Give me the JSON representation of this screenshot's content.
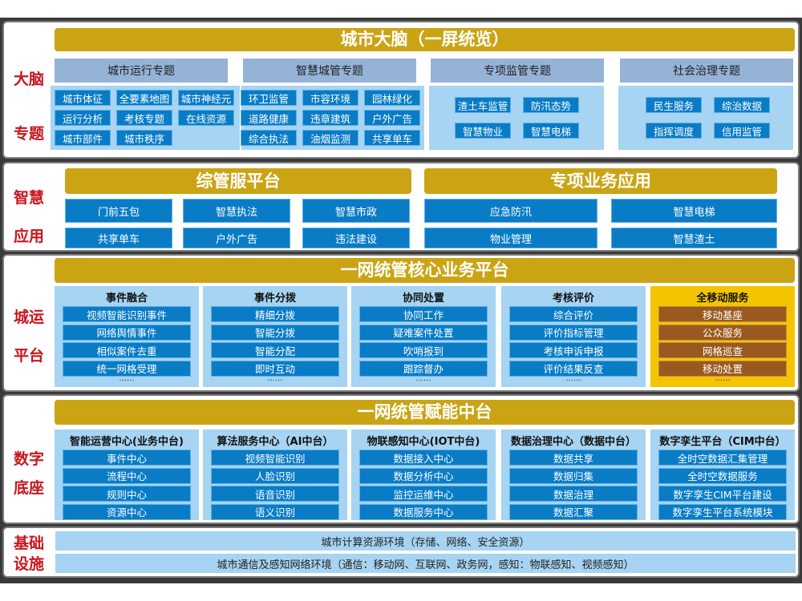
{
  "colors": {
    "gold": "#cba414",
    "header": "#95b3d7",
    "light_blue": "#a6d4f2",
    "item_blue": "#0a7cc6",
    "label_red": "#c8161d",
    "mobile_yellow": "#f5c400",
    "mobile_brown": "#9a5a1f"
  },
  "brain": {
    "label": [
      "大脑",
      "专题"
    ],
    "title": "城市大脑（一屏统览）",
    "groups": [
      {
        "title": "城市运行专题",
        "items": [
          "城市体征",
          "全要素地图",
          "城市神经元",
          "运行分析",
          "考核专题",
          "在线资源",
          "城市部件",
          "城市秩序"
        ]
      },
      {
        "title": "智慧城管专题",
        "items": [
          "环卫监管",
          "市容环境",
          "园林绿化",
          "道路健康",
          "违章建筑",
          "户外广告",
          "综合执法",
          "油烟监测",
          "共享单车"
        ]
      },
      {
        "title": "专项监管专题",
        "items": [
          "渣土车监管",
          "防汛态势",
          "智慧物业",
          "智慧电梯"
        ]
      },
      {
        "title": "社会治理专题",
        "items": [
          "民生服务",
          "综治数据",
          "指挥调度",
          "信用监管"
        ]
      }
    ]
  },
  "apps": {
    "label": [
      "智慧",
      "应用"
    ],
    "left": {
      "title": "综管服平台",
      "items": [
        "门前五包",
        "智慧执法",
        "智慧市政",
        "共享单车",
        "户外广告",
        "违法建设"
      ]
    },
    "right": {
      "title": "专项业务应用",
      "items": [
        "应急防汛",
        "智慧电梯",
        "物业管理",
        "智慧渣土"
      ]
    }
  },
  "ops": {
    "label": [
      "城运",
      "平台"
    ],
    "title": "一网统管核心业务平台",
    "columns": [
      {
        "title": "事件融合",
        "items": [
          "视频智能识别事件",
          "网络舆情事件",
          "相似案件去重",
          "统一网格受理"
        ],
        "more": "······"
      },
      {
        "title": "事件分拨",
        "items": [
          "精细分拨",
          "智能分拨",
          "智能分配",
          "即时互动"
        ],
        "more": "······"
      },
      {
        "title": "协同处置",
        "items": [
          "协同工作",
          "疑难案件处置",
          "吹哨报到",
          "跟踪督办"
        ],
        "more": "······"
      },
      {
        "title": "考核评价",
        "items": [
          "综合评价",
          "评价指标管理",
          "考核申诉申报",
          "评价结果反查"
        ],
        "more": "······"
      },
      {
        "title": "全移动服务",
        "items": [
          "移动基座",
          "公众服务",
          "网格巡查",
          "移动处置"
        ],
        "more": "······"
      }
    ]
  },
  "base": {
    "label": [
      "数字",
      "底座"
    ],
    "title": "一网统管赋能中台",
    "columns": [
      {
        "title": "智能运营中心(业务中台)",
        "items": [
          "事件中心",
          "流程中心",
          "规则中心",
          "资源中心"
        ]
      },
      {
        "title": "算法服务中心（AI中台）",
        "items": [
          "视频智能识别",
          "人脸识别",
          "语音识别",
          "语义识别"
        ]
      },
      {
        "title": "物联感知中心(IOT中台)",
        "items": [
          "数据接入中心",
          "数据分析中心",
          "监控运维中心",
          "数据服务中心"
        ]
      },
      {
        "title": "数据治理中心（数据中台）",
        "items": [
          "数据共享",
          "数据归集",
          "数据治理",
          "数据汇聚"
        ]
      },
      {
        "title": "数字孪生平台（CIM中台）",
        "items": [
          "全时空数据汇集管理",
          "全时空数据服务",
          "数字孪生CIM平台建设",
          "数字孪生平台系统模块"
        ]
      }
    ]
  },
  "infra": {
    "label": [
      "基础",
      "设施"
    ],
    "rows": [
      "城市计算资源环境（存储、网络、安全资源）",
      "城市通信及感知网络环境（通信：移动网、互联网、政务网，感知：物联感知、视频感知）"
    ]
  }
}
